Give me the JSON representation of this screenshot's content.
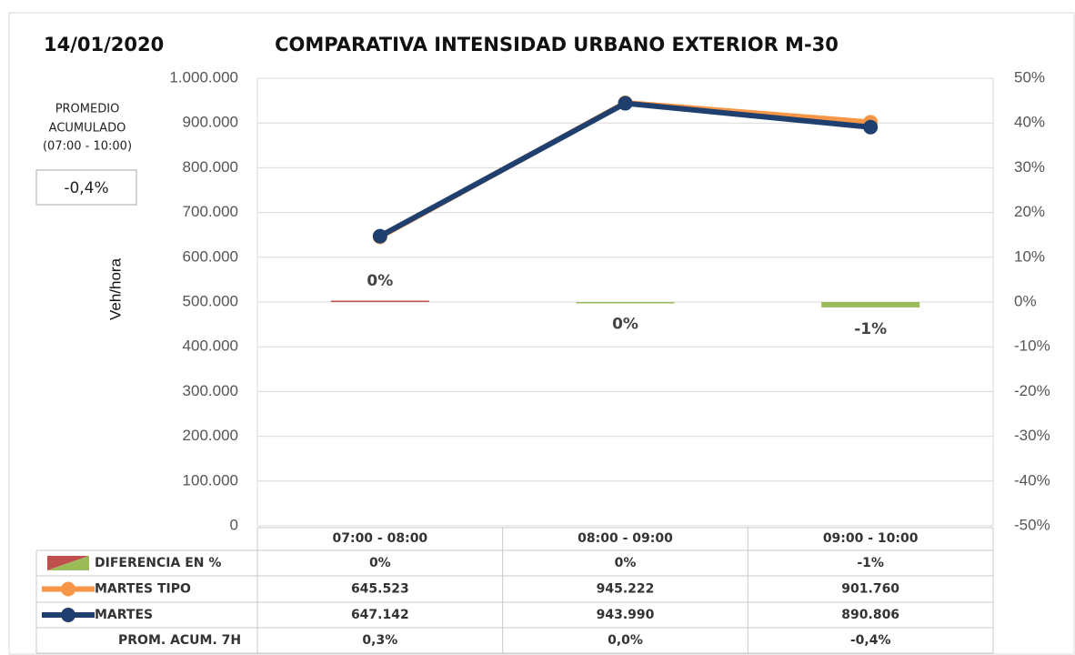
{
  "chart_data": {
    "type": "bar-line",
    "date": "14/01/2020",
    "title": "COMPARATIVA INTENSIDAD URBANO EXTERIOR M-30",
    "y_label": "Veh/hora",
    "summary": {
      "label_lines": [
        "PROMEDIO",
        "ACUMULADO",
        "(07:00 - 10:00)"
      ],
      "value": "-0,4%"
    },
    "categories": [
      "07:00 - 08:00",
      "08:00 - 09:00",
      "09:00 - 10:00"
    ],
    "ylim": [
      0,
      1000000
    ],
    "yticks": [
      {
        "value": 0,
        "label": "0"
      },
      {
        "value": 100000,
        "label": "100.000"
      },
      {
        "value": 200000,
        "label": "200.000"
      },
      {
        "value": 300000,
        "label": "300.000"
      },
      {
        "value": 400000,
        "label": "400.000"
      },
      {
        "value": 500000,
        "label": "500.000"
      },
      {
        "value": 600000,
        "label": "600.000"
      },
      {
        "value": 700000,
        "label": "700.000"
      },
      {
        "value": 800000,
        "label": "800.000"
      },
      {
        "value": 900000,
        "label": "900.000"
      },
      {
        "value": 1000000,
        "label": "1.000.000"
      }
    ],
    "y2lim": [
      -50,
      50
    ],
    "y2ticks": [
      {
        "value": -50,
        "label": "-50%"
      },
      {
        "value": -40,
        "label": "-40%"
      },
      {
        "value": -30,
        "label": "-30%"
      },
      {
        "value": -20,
        "label": "-20%"
      },
      {
        "value": -10,
        "label": "-10%"
      },
      {
        "value": 0,
        "label": "0%"
      },
      {
        "value": 10,
        "label": "10%"
      },
      {
        "value": 20,
        "label": "20%"
      },
      {
        "value": 30,
        "label": "30%"
      },
      {
        "value": 40,
        "label": "40%"
      },
      {
        "value": 50,
        "label": "50%"
      }
    ],
    "grid": true,
    "series": [
      {
        "name": "DIFERENCIA EN %",
        "type": "bar",
        "axis": "y2",
        "colors": [
          "#c0504d",
          "#9bbb59",
          "#9bbb59"
        ],
        "values": [
          0.25,
          -0.13,
          -1.21
        ],
        "value_labels": [
          "0%",
          "0%",
          "-1%"
        ]
      },
      {
        "name": "MARTES TIPO",
        "type": "line",
        "color": "#f79646",
        "values": [
          645523,
          945222,
          901760
        ],
        "value_labels": [
          "645.523",
          "945.222",
          "901.760"
        ]
      },
      {
        "name": "MARTES",
        "type": "line",
        "color": "#1f3f6e",
        "values": [
          647142,
          943990,
          890806
        ],
        "value_labels": [
          "647.142",
          "943.990",
          "890.806"
        ]
      }
    ],
    "extra_row": {
      "label": "PROM. ACUM. 7H",
      "cells": [
        "0,3%",
        "0,0%",
        "-0,4%"
      ]
    }
  }
}
